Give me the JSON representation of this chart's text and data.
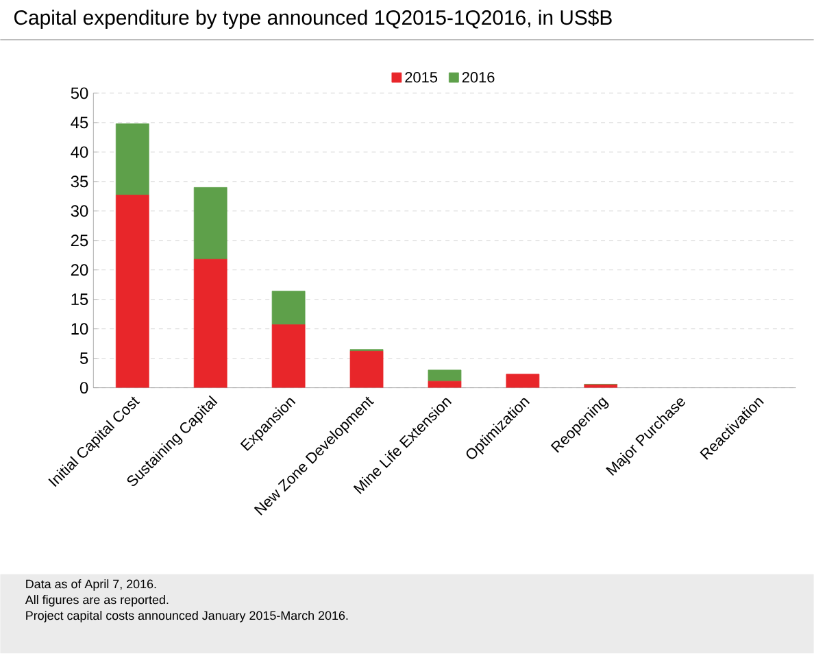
{
  "chart_data": {
    "type": "bar",
    "stacked": true,
    "title": "Capital expenditure by type announced 1Q2015-1Q2016, in US$B",
    "categories": [
      "Initial Capital Cost",
      "Sustaining Capital",
      "Expansion",
      "New Zone Development",
      "Mine Life Extension",
      "Optimization",
      "Reopening",
      "Major Purchase",
      "Reactivation"
    ],
    "series": [
      {
        "name": "2015",
        "color": "#e8262a",
        "values": [
          32.7,
          21.8,
          10.7,
          6.2,
          1.1,
          2.3,
          0.5,
          0,
          0
        ]
      },
      {
        "name": "2016",
        "color": "#5ea04a",
        "values": [
          12.1,
          12.2,
          5.7,
          0.3,
          1.9,
          0,
          0.1,
          0,
          0
        ]
      }
    ],
    "ylim": [
      0,
      50
    ],
    "yticks": [
      0,
      5,
      10,
      15,
      20,
      25,
      30,
      35,
      40,
      45,
      50
    ],
    "grid": "y",
    "legend": "top",
    "annotations": [
      "Data as of April 7, 2016.",
      "All figures are as reported.",
      "Project capital costs announced January 2015-March 2016."
    ]
  }
}
